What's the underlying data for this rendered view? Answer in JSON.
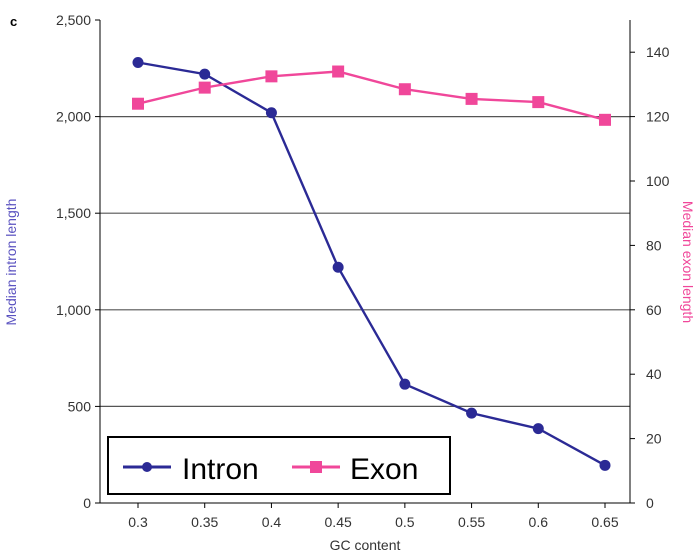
{
  "panel_label": "c",
  "colors": {
    "intron": "#2b2a95",
    "exon": "#f0479a",
    "grid": "#555555",
    "axis": "#000000",
    "left_label_color": "#5a52c0",
    "right_label_color": "#f0479a",
    "legend_border": "#000000"
  },
  "chart_data": {
    "type": "line",
    "title": "",
    "xlabel": "GC content",
    "ylabel": "Median intron length",
    "y2label": "Median exon length",
    "x": [
      0.3,
      0.35,
      0.4,
      0.45,
      0.5,
      0.55,
      0.6,
      0.65
    ],
    "x_tick_labels": [
      "0.3",
      "0.35",
      "0.4",
      "0.45",
      "0.5",
      "0.55",
      "0.6",
      "0.65"
    ],
    "ylim": [
      0,
      2500
    ],
    "y2lim": [
      0,
      150
    ],
    "y_ticks": [
      0,
      500,
      1000,
      1500,
      2000,
      2500
    ],
    "y_tick_labels": [
      "0",
      "500",
      "1,000",
      "1,500",
      "2,000",
      "2,500"
    ],
    "y2_ticks": [
      0,
      20,
      40,
      60,
      80,
      100,
      120,
      140
    ],
    "y2_tick_labels": [
      "0",
      "20",
      "40",
      "60",
      "80",
      "100",
      "120",
      "140"
    ],
    "grid": "horizontal",
    "series": [
      {
        "name": "Intron",
        "axis": "left",
        "marker": "circle",
        "values": [
          2280,
          2220,
          2020,
          1220,
          615,
          465,
          385,
          195
        ]
      },
      {
        "name": "Exon",
        "axis": "right",
        "marker": "square",
        "values": [
          124,
          129,
          132.5,
          134,
          128.5,
          125.5,
          124.5,
          119
        ]
      }
    ],
    "legend": {
      "placement": "bottom-left",
      "entries": [
        "Intron",
        "Exon"
      ]
    }
  }
}
